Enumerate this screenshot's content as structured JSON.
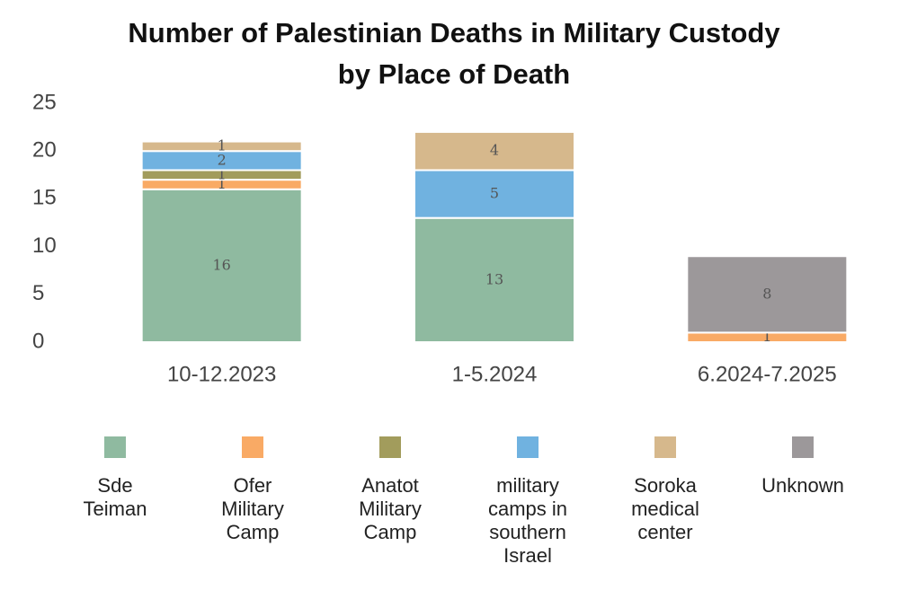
{
  "chart_data": {
    "type": "stacked_bar",
    "title": "Number of Palestinian Deaths in Military Custody\nby Place of Death",
    "categories": [
      "10-12.2023",
      "1-5.2024",
      "6.2024-7.2025"
    ],
    "series": [
      {
        "name": "Sde Teiman",
        "color": "#8fbaa0",
        "values": [
          16,
          13,
          null
        ]
      },
      {
        "name": "Ofer Military Camp",
        "color": "#f9aa65",
        "values": [
          1,
          null,
          1
        ]
      },
      {
        "name": "Anatot Military Camp",
        "color": "#a29c5c",
        "values": [
          1,
          null,
          null
        ]
      },
      {
        "name": "military camps in southern Israel",
        "color": "#70b2e0",
        "values": [
          2,
          5,
          null
        ]
      },
      {
        "name": "Soroka medical center",
        "color": "#d6b88c",
        "values": [
          1,
          4,
          null
        ]
      },
      {
        "name": "Unknown",
        "color": "#9c989a",
        "values": [
          null,
          null,
          8
        ]
      }
    ],
    "ylim": [
      0,
      25
    ],
    "yticks": [
      0,
      5,
      10,
      15,
      20,
      25
    ],
    "grid": false,
    "legend": "bottom"
  }
}
